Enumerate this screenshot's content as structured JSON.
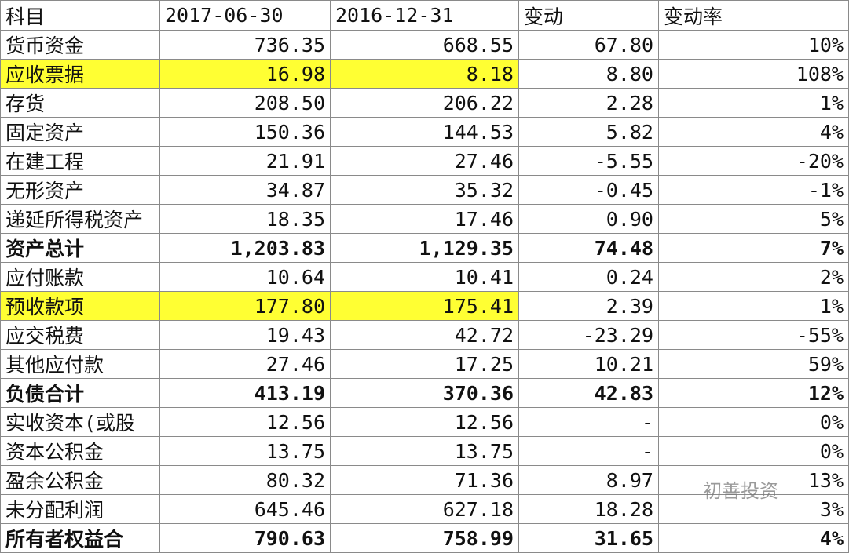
{
  "table": {
    "header": [
      "科目",
      "2017-06-30",
      "2016-12-31",
      "变动",
      "变动率"
    ],
    "rows": [
      [
        "货币资金",
        "736.35",
        "668.55",
        "67.80",
        "10%"
      ],
      [
        "应收票据",
        "16.98",
        "8.18",
        "8.80",
        "108%"
      ],
      [
        "存货",
        "208.50",
        "206.22",
        "2.28",
        "1%"
      ],
      [
        "固定资产",
        "150.36",
        "144.53",
        "5.82",
        "4%"
      ],
      [
        "在建工程",
        "21.91",
        "27.46",
        "-5.55",
        "-20%"
      ],
      [
        "无形资产",
        "34.87",
        "35.32",
        "-0.45",
        "-1%"
      ],
      [
        "递延所得税资产",
        "18.35",
        "17.46",
        "0.90",
        "5%"
      ],
      [
        "资产总计",
        "1,203.83",
        "1,129.35",
        "74.48",
        "7%"
      ],
      [
        "应付账款",
        "10.64",
        "10.41",
        "0.24",
        "2%"
      ],
      [
        "预收款项",
        "177.80",
        "175.41",
        "2.39",
        "1%"
      ],
      [
        "应交税费",
        "19.43",
        "42.72",
        "-23.29",
        "-55%"
      ],
      [
        "其他应付款",
        "27.46",
        "17.25",
        "10.21",
        "59%"
      ],
      [
        "负债合计",
        "413.19",
        "370.36",
        "42.83",
        "12%"
      ],
      [
        "实收资本(或股",
        "12.56",
        "12.56",
        "-",
        "0%"
      ],
      [
        "资本公积金",
        "13.75",
        "13.75",
        "-",
        "0%"
      ],
      [
        "盈余公积金",
        "80.32",
        "71.36",
        "8.97",
        "13%"
      ],
      [
        "未分配利润",
        "645.46",
        "627.18",
        "18.28",
        "3%"
      ],
      [
        "所有者权益合",
        "790.63",
        "758.99",
        "31.65",
        "4%"
      ]
    ]
  },
  "watermark": "初善投资"
}
